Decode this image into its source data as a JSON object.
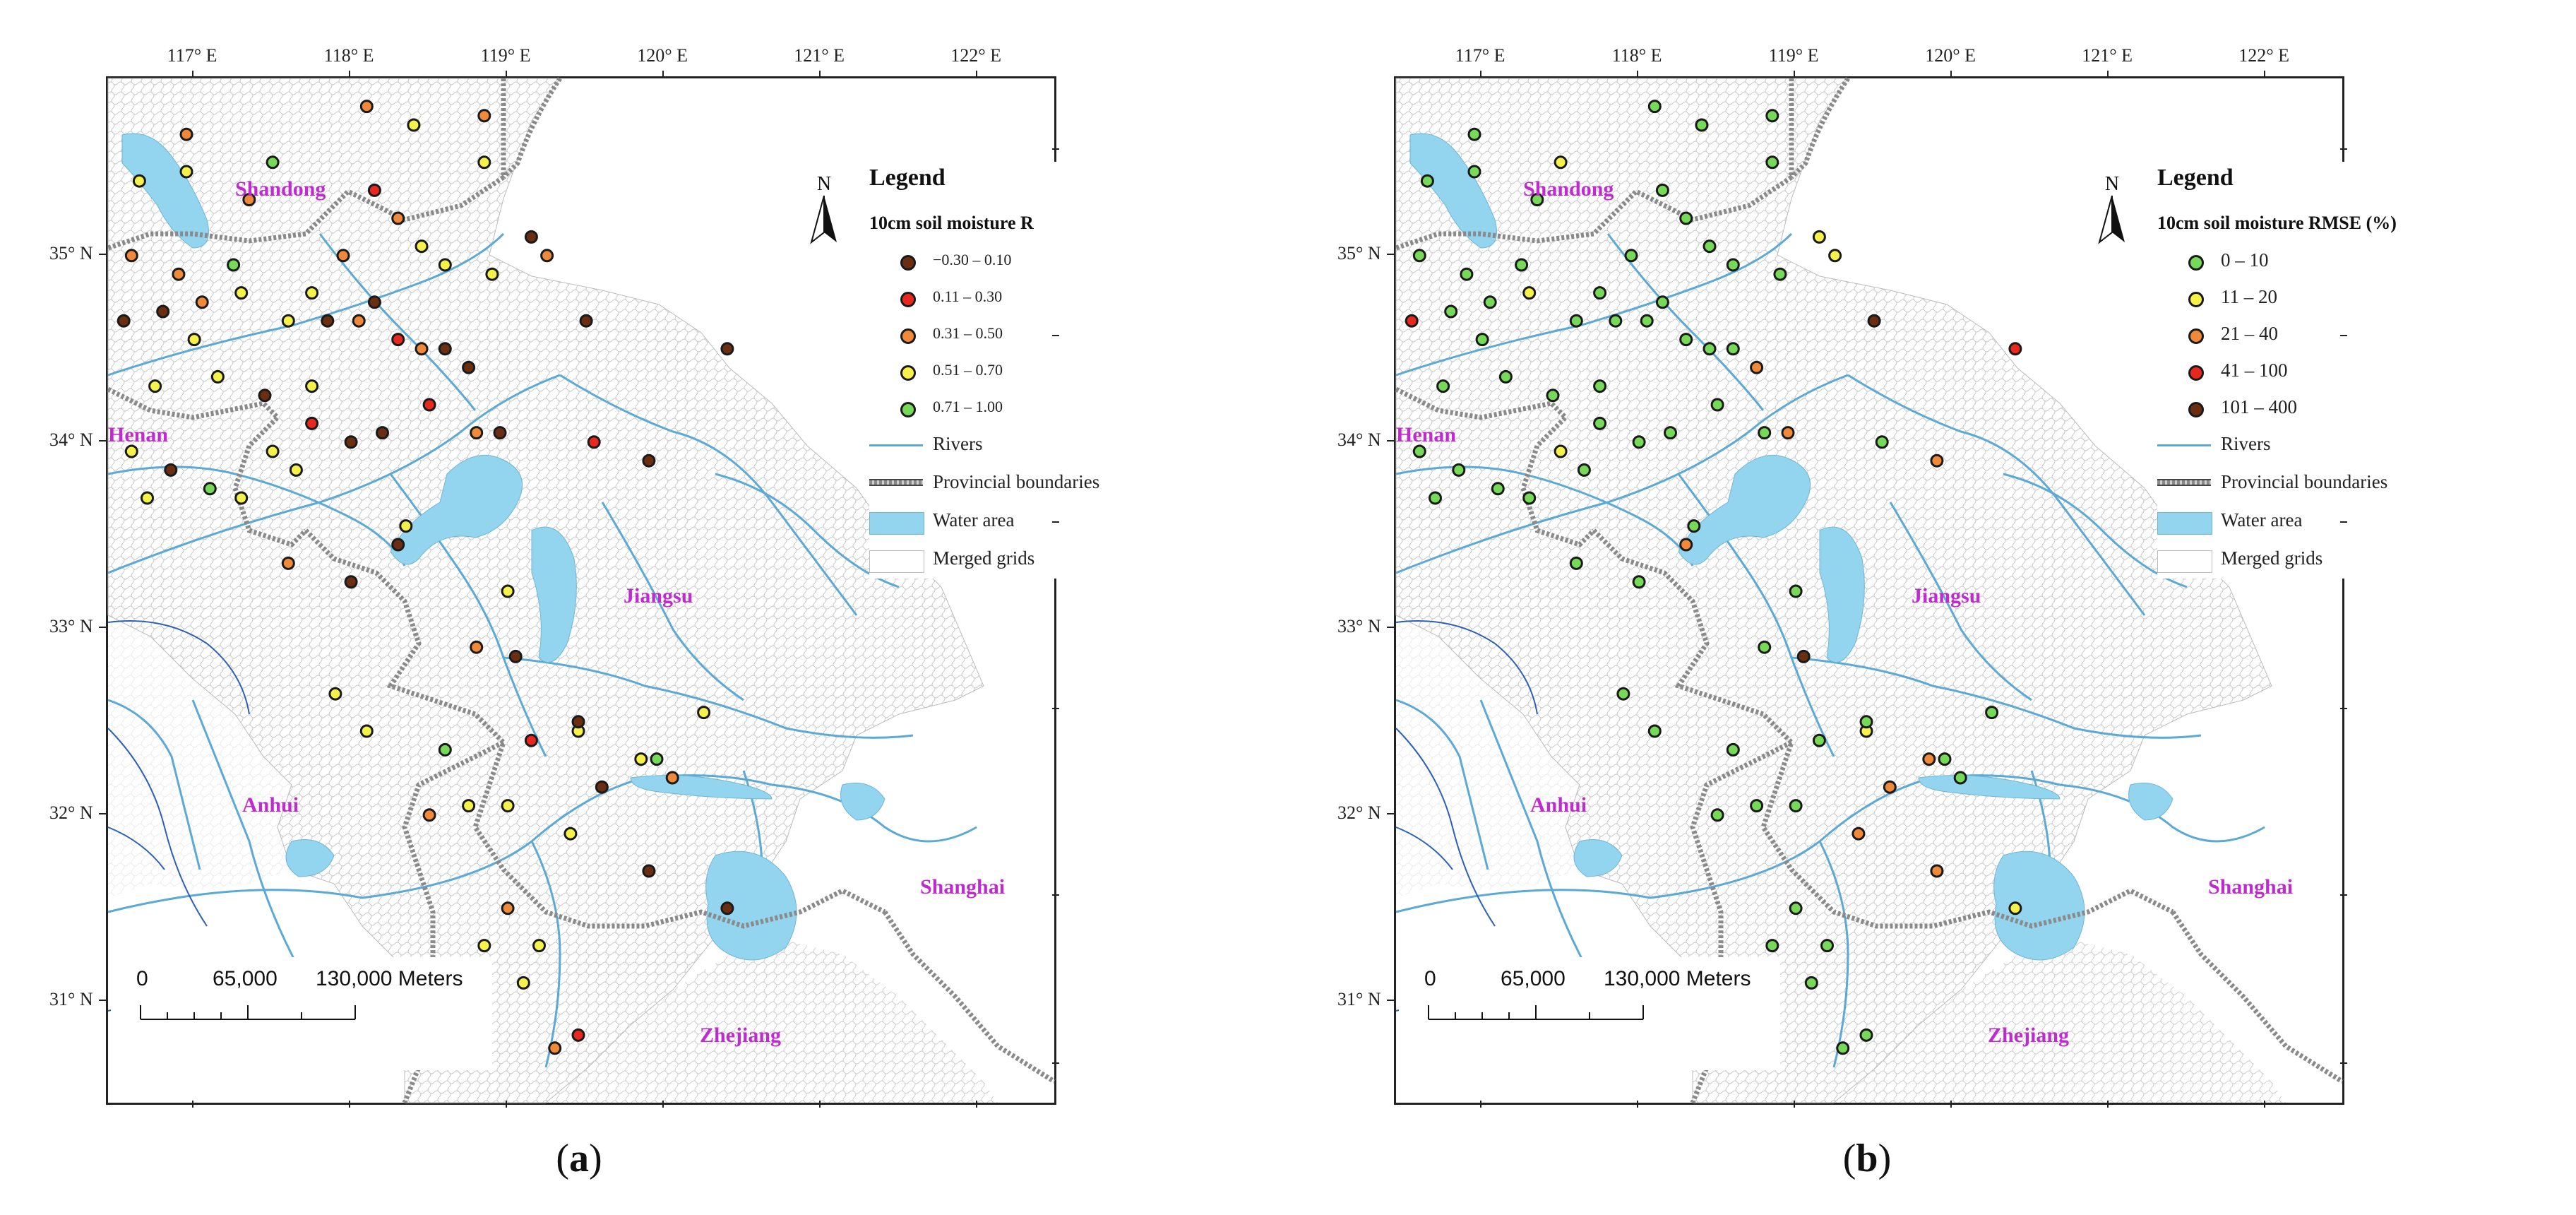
{
  "axes": {
    "longitudes": [
      "117° E",
      "118° E",
      "119° E",
      "120° E",
      "121° E",
      "122° E"
    ],
    "latitudes": [
      "35° N",
      "34° N",
      "33° N",
      "32° N",
      "31° N"
    ]
  },
  "provinces": [
    "Shandong",
    "Henan",
    "Jiangsu",
    "Anhui",
    "Shanghai",
    "Zhejiang"
  ],
  "scale": {
    "zero": "0",
    "mid": "65,000",
    "end": "130,000 Meters"
  },
  "legend_common": {
    "title": "Legend",
    "north": "N",
    "rivers": "Rivers",
    "boundaries": "Provincial boundaries",
    "water": "Water area",
    "grids": "Merged grids"
  },
  "panels": [
    {
      "label_letter": "a",
      "label_open": "(",
      "label_close": ")",
      "legend_subtitle": "10cm soil moisture R",
      "classes": [
        {
          "label": "−0.30 – 0.10",
          "color": "#6b2e10"
        },
        {
          "label": "0.11 – 0.30",
          "color": "#e8281e"
        },
        {
          "label": "0.31 – 0.50",
          "color": "#f08a3a"
        },
        {
          "label": "0.51 – 0.70",
          "color": "#f6f24a"
        },
        {
          "label": "0.71 – 1.00",
          "color": "#76d957"
        }
      ]
    },
    {
      "label_letter": "b",
      "label_open": "(",
      "label_close": ")",
      "legend_subtitle": "10cm soil moisture RMSE (%)",
      "classes": [
        {
          "label": "0 – 10",
          "color": "#76d957"
        },
        {
          "label": "11 – 20",
          "color": "#f6f24a"
        },
        {
          "label": "21 – 40",
          "color": "#f08a3a"
        },
        {
          "label": "41 – 100",
          "color": "#e8281e"
        },
        {
          "label": "101 – 400",
          "color": "#6b2e10"
        }
      ]
    }
  ],
  "colors": {
    "province_label": "#c02bd0",
    "river": "#5aa9d6",
    "water": "#93d4ef",
    "grid_line": "#c8c8c8",
    "boundary": "#8a8a8a"
  },
  "stations": [
    {
      "lon": 117.5,
      "lat": 35.5,
      "a": 4,
      "b": 1
    },
    {
      "lon": 116.95,
      "lat": 35.65,
      "a": 2,
      "b": 0
    },
    {
      "lon": 117.35,
      "lat": 35.3,
      "a": 2,
      "b": 0
    },
    {
      "lon": 117.25,
      "lat": 34.95,
      "a": 4,
      "b": 0
    },
    {
      "lon": 116.9,
      "lat": 34.9,
      "a": 2,
      "b": 0
    },
    {
      "lon": 116.8,
      "lat": 34.7,
      "a": 0,
      "b": 0
    },
    {
      "lon": 117.05,
      "lat": 34.75,
      "a": 2,
      "b": 0
    },
    {
      "lon": 117.6,
      "lat": 34.65,
      "a": 3,
      "b": 0
    },
    {
      "lon": 117.0,
      "lat": 34.55,
      "a": 3,
      "b": 0
    },
    {
      "lon": 117.3,
      "lat": 34.8,
      "a": 3,
      "b": 1
    },
    {
      "lon": 117.75,
      "lat": 34.8,
      "a": 3,
      "b": 0
    },
    {
      "lon": 117.85,
      "lat": 34.65,
      "a": 0,
      "b": 0
    },
    {
      "lon": 118.05,
      "lat": 34.65,
      "a": 2,
      "b": 0
    },
    {
      "lon": 118.15,
      "lat": 34.75,
      "a": 0,
      "b": 0
    },
    {
      "lon": 118.3,
      "lat": 34.55,
      "a": 1,
      "b": 0
    },
    {
      "lon": 118.45,
      "lat": 34.5,
      "a": 2,
      "b": 0
    },
    {
      "lon": 118.6,
      "lat": 34.5,
      "a": 0,
      "b": 0
    },
    {
      "lon": 118.75,
      "lat": 34.4,
      "a": 0,
      "b": 2
    },
    {
      "lon": 117.95,
      "lat": 35.0,
      "a": 2,
      "b": 0
    },
    {
      "lon": 118.15,
      "lat": 35.35,
      "a": 1,
      "b": 0
    },
    {
      "lon": 118.3,
      "lat": 35.2,
      "a": 2,
      "b": 0
    },
    {
      "lon": 118.45,
      "lat": 35.05,
      "a": 3,
      "b": 0
    },
    {
      "lon": 118.6,
      "lat": 34.95,
      "a": 3,
      "b": 0
    },
    {
      "lon": 118.85,
      "lat": 35.5,
      "a": 3,
      "b": 0
    },
    {
      "lon": 119.15,
      "lat": 35.1,
      "a": 0,
      "b": 1
    },
    {
      "lon": 119.25,
      "lat": 35.0,
      "a": 2,
      "b": 1
    },
    {
      "lon": 118.1,
      "lat": 35.8,
      "a": 2,
      "b": 0
    },
    {
      "lon": 118.4,
      "lat": 35.7,
      "a": 3,
      "b": 0
    },
    {
      "lon": 118.85,
      "lat": 35.75,
      "a": 2,
      "b": 0
    },
    {
      "lon": 118.9,
      "lat": 34.9,
      "a": 3,
      "b": 0
    },
    {
      "lon": 118.5,
      "lat": 34.2,
      "a": 1,
      "b": 0
    },
    {
      "lon": 118.8,
      "lat": 34.05,
      "a": 2,
      "b": 0
    },
    {
      "lon": 118.95,
      "lat": 34.05,
      "a": 0,
      "b": 2
    },
    {
      "lon": 119.5,
      "lat": 34.65,
      "a": 0,
      "b": 4
    },
    {
      "lon": 119.55,
      "lat": 34.0,
      "a": 1,
      "b": 0
    },
    {
      "lon": 119.9,
      "lat": 33.9,
      "a": 0,
      "b": 2
    },
    {
      "lon": 120.4,
      "lat": 34.5,
      "a": 0,
      "b": 3
    },
    {
      "lon": 117.15,
      "lat": 34.35,
      "a": 3,
      "b": 0
    },
    {
      "lon": 117.45,
      "lat": 34.25,
      "a": 0,
      "b": 0
    },
    {
      "lon": 117.75,
      "lat": 34.3,
      "a": 3,
      "b": 0
    },
    {
      "lon": 117.75,
      "lat": 34.1,
      "a": 1,
      "b": 0
    },
    {
      "lon": 118.0,
      "lat": 34.0,
      "a": 0,
      "b": 0
    },
    {
      "lon": 118.2,
      "lat": 34.05,
      "a": 0,
      "b": 0
    },
    {
      "lon": 117.65,
      "lat": 33.85,
      "a": 3,
      "b": 0
    },
    {
      "lon": 117.5,
      "lat": 33.95,
      "a": 3,
      "b": 1
    },
    {
      "lon": 116.85,
      "lat": 33.85,
      "a": 0,
      "b": 0
    },
    {
      "lon": 116.6,
      "lat": 33.95,
      "a": 3,
      "b": 0
    },
    {
      "lon": 116.7,
      "lat": 33.7,
      "a": 3,
      "b": 0
    },
    {
      "lon": 117.1,
      "lat": 33.75,
      "a": 4,
      "b": 0
    },
    {
      "lon": 117.3,
      "lat": 33.7,
      "a": 3,
      "b": 0
    },
    {
      "lon": 118.35,
      "lat": 33.55,
      "a": 3,
      "b": 0
    },
    {
      "lon": 118.3,
      "lat": 33.45,
      "a": 0,
      "b": 2
    },
    {
      "lon": 117.6,
      "lat": 33.35,
      "a": 2,
      "b": 0
    },
    {
      "lon": 118.0,
      "lat": 33.25,
      "a": 0,
      "b": 0
    },
    {
      "lon": 119.0,
      "lat": 33.2,
      "a": 3,
      "b": 0
    },
    {
      "lon": 118.8,
      "lat": 32.9,
      "a": 2,
      "b": 0
    },
    {
      "lon": 119.05,
      "lat": 32.85,
      "a": 0,
      "b": 4
    },
    {
      "lon": 117.9,
      "lat": 32.65,
      "a": 3,
      "b": 0
    },
    {
      "lon": 118.1,
      "lat": 32.45,
      "a": 3,
      "b": 0
    },
    {
      "lon": 119.15,
      "lat": 32.4,
      "a": 1,
      "b": 0
    },
    {
      "lon": 119.45,
      "lat": 32.45,
      "a": 3,
      "b": 1
    },
    {
      "lon": 119.45,
      "lat": 32.5,
      "a": 0,
      "b": 0
    },
    {
      "lon": 119.85,
      "lat": 32.3,
      "a": 3,
      "b": 2
    },
    {
      "lon": 119.95,
      "lat": 32.3,
      "a": 4,
      "b": 0
    },
    {
      "lon": 120.05,
      "lat": 32.2,
      "a": 2,
      "b": 0
    },
    {
      "lon": 120.25,
      "lat": 32.55,
      "a": 3,
      "b": 0
    },
    {
      "lon": 119.6,
      "lat": 32.15,
      "a": 0,
      "b": 2
    },
    {
      "lon": 118.6,
      "lat": 32.35,
      "a": 4,
      "b": 0
    },
    {
      "lon": 118.5,
      "lat": 32.0,
      "a": 2,
      "b": 0
    },
    {
      "lon": 118.75,
      "lat": 32.05,
      "a": 3,
      "b": 0
    },
    {
      "lon": 119.0,
      "lat": 32.05,
      "a": 3,
      "b": 0
    },
    {
      "lon": 119.4,
      "lat": 31.9,
      "a": 3,
      "b": 2
    },
    {
      "lon": 119.9,
      "lat": 31.7,
      "a": 0,
      "b": 2
    },
    {
      "lon": 120.4,
      "lat": 31.5,
      "a": 0,
      "b": 1
    },
    {
      "lon": 119.0,
      "lat": 31.5,
      "a": 2,
      "b": 0
    },
    {
      "lon": 118.85,
      "lat": 31.3,
      "a": 3,
      "b": 0
    },
    {
      "lon": 119.2,
      "lat": 31.3,
      "a": 3,
      "b": 0
    },
    {
      "lon": 119.1,
      "lat": 31.1,
      "a": 3,
      "b": 0
    },
    {
      "lon": 119.3,
      "lat": 30.75,
      "a": 2,
      "b": 0
    },
    {
      "lon": 119.45,
      "lat": 30.82,
      "a": 1,
      "b": 0
    },
    {
      "lon": 116.55,
      "lat": 34.65,
      "a": 0,
      "b": 3
    },
    {
      "lon": 116.6,
      "lat": 35.0,
      "a": 2,
      "b": 0
    },
    {
      "lon": 116.65,
      "lat": 35.4,
      "a": 3,
      "b": 0
    },
    {
      "lon": 116.95,
      "lat": 35.45,
      "a": 3,
      "b": 0
    },
    {
      "lon": 116.75,
      "lat": 34.3,
      "a": 3,
      "b": 0
    }
  ]
}
